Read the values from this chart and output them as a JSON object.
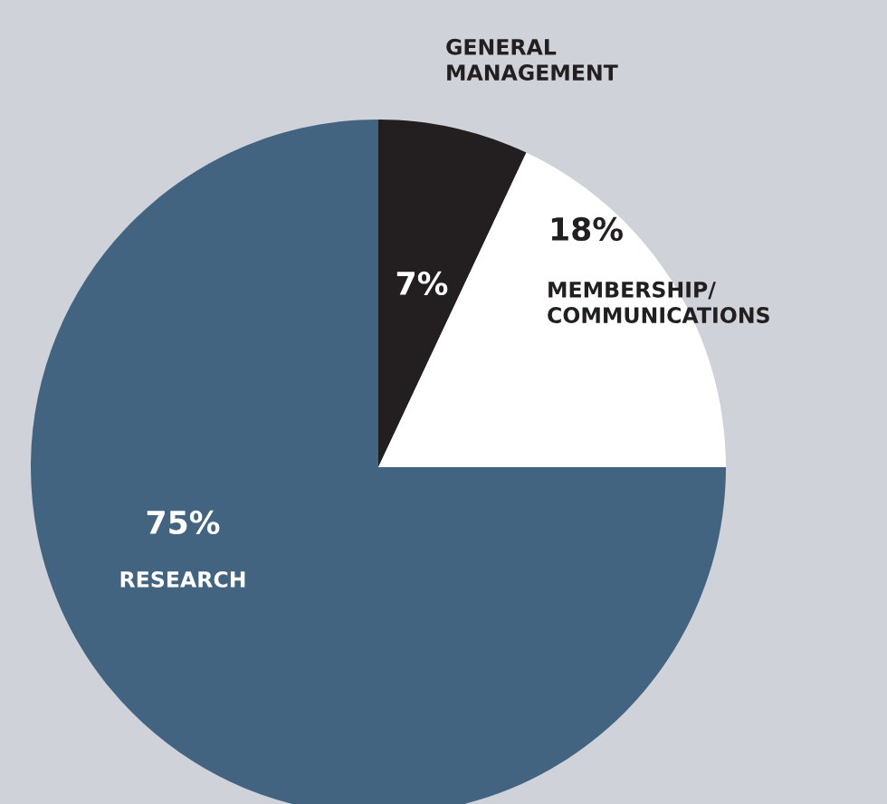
{
  "chart_data": {
    "type": "pie",
    "categories": [
      "GENERAL\nMANAGEMENT",
      "MEMBERSHIP/\nCOMMUNICATIONS",
      "RESEARCH"
    ],
    "values": [
      7,
      18,
      75
    ],
    "colors": [
      "#231f20",
      "#ffffff",
      "#436480"
    ],
    "value_labels": [
      "7%",
      "18%",
      "75%"
    ]
  }
}
